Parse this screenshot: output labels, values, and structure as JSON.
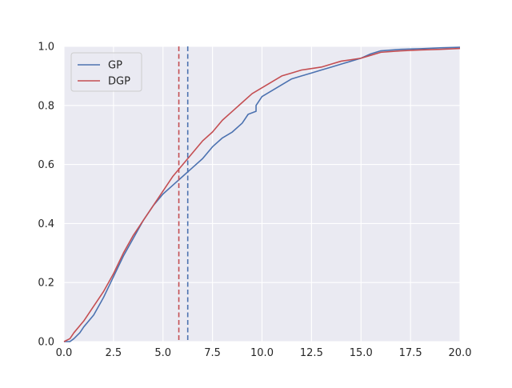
{
  "chart_data": {
    "type": "line",
    "title": "",
    "xlabel": "",
    "ylabel": "",
    "xlim": [
      0,
      20
    ],
    "ylim": [
      0,
      1.0
    ],
    "grid": true,
    "legend_position": "top-left",
    "xticks": [
      "0.0",
      "2.5",
      "5.0",
      "7.5",
      "10.0",
      "12.5",
      "15.0",
      "17.5",
      "20.0"
    ],
    "yticks": [
      "0.0",
      "0.2",
      "0.4",
      "0.6",
      "0.8",
      "1.0"
    ],
    "series": [
      {
        "name": "GP",
        "color": "#4c72b0",
        "x": [
          0,
          0.3,
          0.5,
          0.8,
          1.0,
          1.5,
          2.0,
          2.5,
          3.0,
          3.5,
          4.0,
          4.5,
          5.0,
          5.5,
          6.0,
          6.5,
          7.0,
          7.5,
          8.0,
          8.5,
          9.0,
          9.3,
          9.7,
          9.7,
          10.0,
          10.5,
          11.0,
          11.5,
          12.0,
          12.5,
          13.0,
          13.5,
          14.0,
          14.5,
          15.0,
          15.5,
          16.0,
          17.0,
          18.0,
          19.0,
          20.0
        ],
        "y": [
          0,
          0.0,
          0.01,
          0.03,
          0.05,
          0.09,
          0.15,
          0.22,
          0.29,
          0.35,
          0.41,
          0.46,
          0.5,
          0.53,
          0.56,
          0.59,
          0.62,
          0.66,
          0.69,
          0.71,
          0.74,
          0.77,
          0.78,
          0.8,
          0.83,
          0.85,
          0.87,
          0.89,
          0.9,
          0.91,
          0.92,
          0.93,
          0.94,
          0.95,
          0.96,
          0.975,
          0.985,
          0.99,
          0.992,
          0.995,
          0.997
        ]
      },
      {
        "name": "DGP",
        "color": "#c44e52",
        "x": [
          0,
          0.3,
          0.5,
          1.0,
          1.5,
          2.0,
          2.5,
          3.0,
          3.5,
          4.0,
          4.5,
          5.0,
          5.5,
          6.0,
          6.5,
          7.0,
          7.5,
          8.0,
          8.5,
          9.0,
          9.5,
          10.0,
          10.5,
          11.0,
          11.5,
          12.0,
          12.5,
          13.0,
          13.5,
          14.0,
          14.5,
          15.0,
          15.5,
          16.0,
          17.0,
          18.0,
          19.0,
          20.0
        ],
        "y": [
          0,
          0.01,
          0.03,
          0.07,
          0.12,
          0.17,
          0.23,
          0.3,
          0.36,
          0.41,
          0.46,
          0.51,
          0.56,
          0.6,
          0.64,
          0.68,
          0.71,
          0.75,
          0.78,
          0.81,
          0.84,
          0.86,
          0.88,
          0.9,
          0.91,
          0.92,
          0.925,
          0.93,
          0.94,
          0.95,
          0.955,
          0.96,
          0.97,
          0.98,
          0.985,
          0.988,
          0.99,
          0.993
        ]
      }
    ],
    "vlines": [
      {
        "series": "DGP",
        "x": 5.8,
        "color": "#c44e52",
        "style": "dashed"
      },
      {
        "series": "GP",
        "x": 6.25,
        "color": "#4c72b0",
        "style": "dashed"
      }
    ]
  }
}
